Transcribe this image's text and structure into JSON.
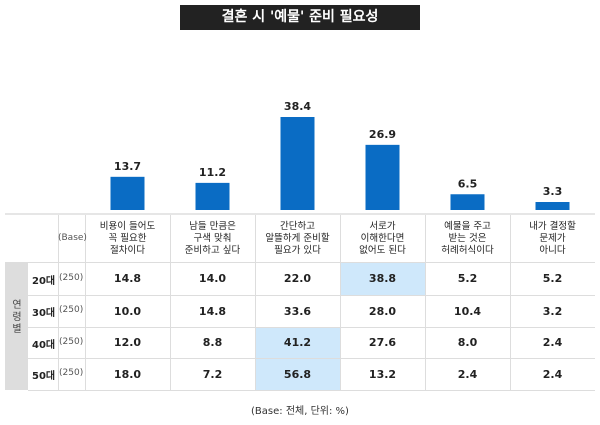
{
  "title": "결혼 시 '예물' 준비 필요성",
  "chart_data": {
    "type": "bar",
    "title": "결혼 시 '예물' 준비 필요성",
    "categories": [
      "비용이 들어도\n꼭 필요한\n절차이다",
      "남들 만큼은\n구색 맞춰\n준비하고 싶다",
      "간단하고\n알뜰하게 준비할\n필요가 있다",
      "서로가\n이해한다면\n없어도 된다",
      "예물을 주고\n받는 것은\n허례허식이다",
      "내가 결정할\n문제가\n아니다"
    ],
    "values": [
      13.7,
      11.2,
      38.4,
      26.9,
      6.5,
      3.3
    ],
    "value_labels": [
      "13.7",
      "11.2",
      "38.4",
      "26.9",
      "6.5",
      "3.3"
    ],
    "bar_color": "#0a6cc4",
    "ylim": [
      0,
      40
    ]
  },
  "table": {
    "base_header": "(Base)",
    "group_label": "연령별",
    "rows": [
      {
        "label": "20대",
        "base": "(250)",
        "values": [
          "14.8",
          "14.0",
          "22.0",
          "38.8",
          "5.2",
          "5.2"
        ],
        "highlight": 3
      },
      {
        "label": "30대",
        "base": "(250)",
        "values": [
          "10.0",
          "14.8",
          "33.6",
          "28.0",
          "10.4",
          "3.2"
        ],
        "highlight": -1
      },
      {
        "label": "40대",
        "base": "(250)",
        "values": [
          "12.0",
          "8.8",
          "41.2",
          "27.6",
          "8.0",
          "2.4"
        ],
        "highlight": 2
      },
      {
        "label": "50대",
        "base": "(250)",
        "values": [
          "18.0",
          "7.2",
          "56.8",
          "13.2",
          "2.4",
          "2.4"
        ],
        "highlight": 2
      }
    ]
  },
  "footer": "(Base: 전체, 단위: %)"
}
